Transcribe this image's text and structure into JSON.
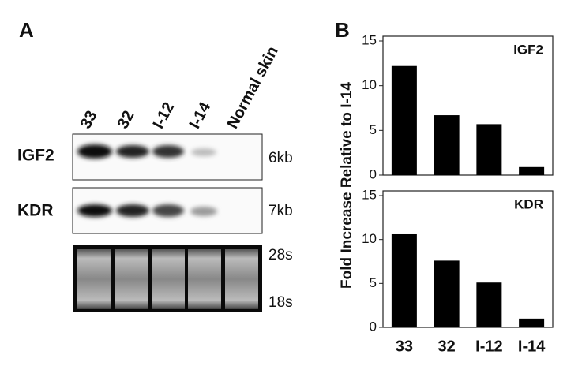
{
  "panel_a": {
    "label": "A",
    "lanes": [
      "33",
      "32",
      "I-12",
      "I-14",
      "Normal skin"
    ],
    "rows": [
      "IGF2",
      "KDR"
    ],
    "sizes": [
      "6kb",
      "7kb",
      "28s",
      "18s"
    ]
  },
  "panel_b_label": "B",
  "chart_data": [
    {
      "type": "bar",
      "annotation": "IGF2",
      "ylabel": "Fold Increase Relative to I-14",
      "categories": [
        null,
        null,
        null,
        null
      ],
      "values": [
        12.2,
        6.7,
        5.7,
        0.9
      ],
      "color": "#000000",
      "ylim": [
        0,
        15
      ],
      "yticks": [
        0,
        5,
        10,
        15
      ]
    },
    {
      "type": "bar",
      "annotation": "KDR",
      "categories": [
        "33",
        "32",
        "I-12",
        "I-14"
      ],
      "values": [
        10.6,
        7.6,
        5.1,
        1.0
      ],
      "color": "#000000",
      "ylim": [
        0,
        15
      ],
      "yticks": [
        0,
        5,
        10,
        15
      ]
    }
  ]
}
